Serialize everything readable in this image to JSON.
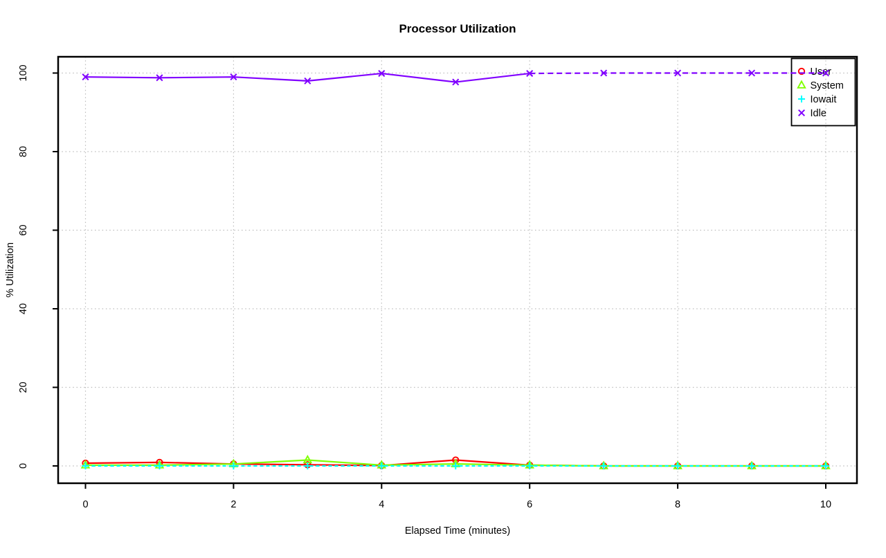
{
  "chart": {
    "title": "Processor Utilization",
    "xlabel": "Elapsed Time (minutes)",
    "ylabel": "% Utilization"
  },
  "chart_data": {
    "type": "line",
    "title": "Processor Utilization",
    "xlabel": "Elapsed Time (minutes)",
    "ylabel": "% Utilization",
    "x": [
      0,
      1,
      2,
      3,
      4,
      5,
      6,
      7,
      8,
      9,
      10
    ],
    "xlim": [
      0,
      10
    ],
    "ylim": [
      0,
      100
    ],
    "xticks": [
      0,
      2,
      4,
      6,
      8,
      10
    ],
    "yticks": [
      0,
      20,
      40,
      60,
      80,
      100
    ],
    "grid": true,
    "grid_color": "#bcbcbc",
    "legend_position": "top-right",
    "series": [
      {
        "name": "User",
        "color": "#FF0000",
        "marker": "circle",
        "dash": null,
        "values": [
          0.7,
          0.9,
          0.5,
          0.3,
          0.1,
          1.5,
          0.2,
          0,
          0,
          0,
          0
        ]
      },
      {
        "name": "System",
        "color": "#80FF00",
        "marker": "triangle",
        "dash": null,
        "values": [
          0.2,
          0.2,
          0.5,
          1.5,
          0.2,
          0.5,
          0.2,
          0,
          0,
          0,
          0
        ]
      },
      {
        "name": "Iowait",
        "color": "#00FFFF",
        "marker": "plus",
        "dash": "5,4",
        "values": [
          0,
          0,
          0,
          0,
          0,
          0,
          0,
          0,
          0,
          0,
          0
        ]
      },
      {
        "name": "Idle",
        "color": "#8000FF",
        "marker": "x",
        "dash": null,
        "dash_from_index": 6,
        "dash_pattern": "8,5",
        "values": [
          99,
          98.8,
          99,
          98,
          99.9,
          97.7,
          99.9,
          100,
          100,
          100,
          100
        ]
      }
    ]
  }
}
